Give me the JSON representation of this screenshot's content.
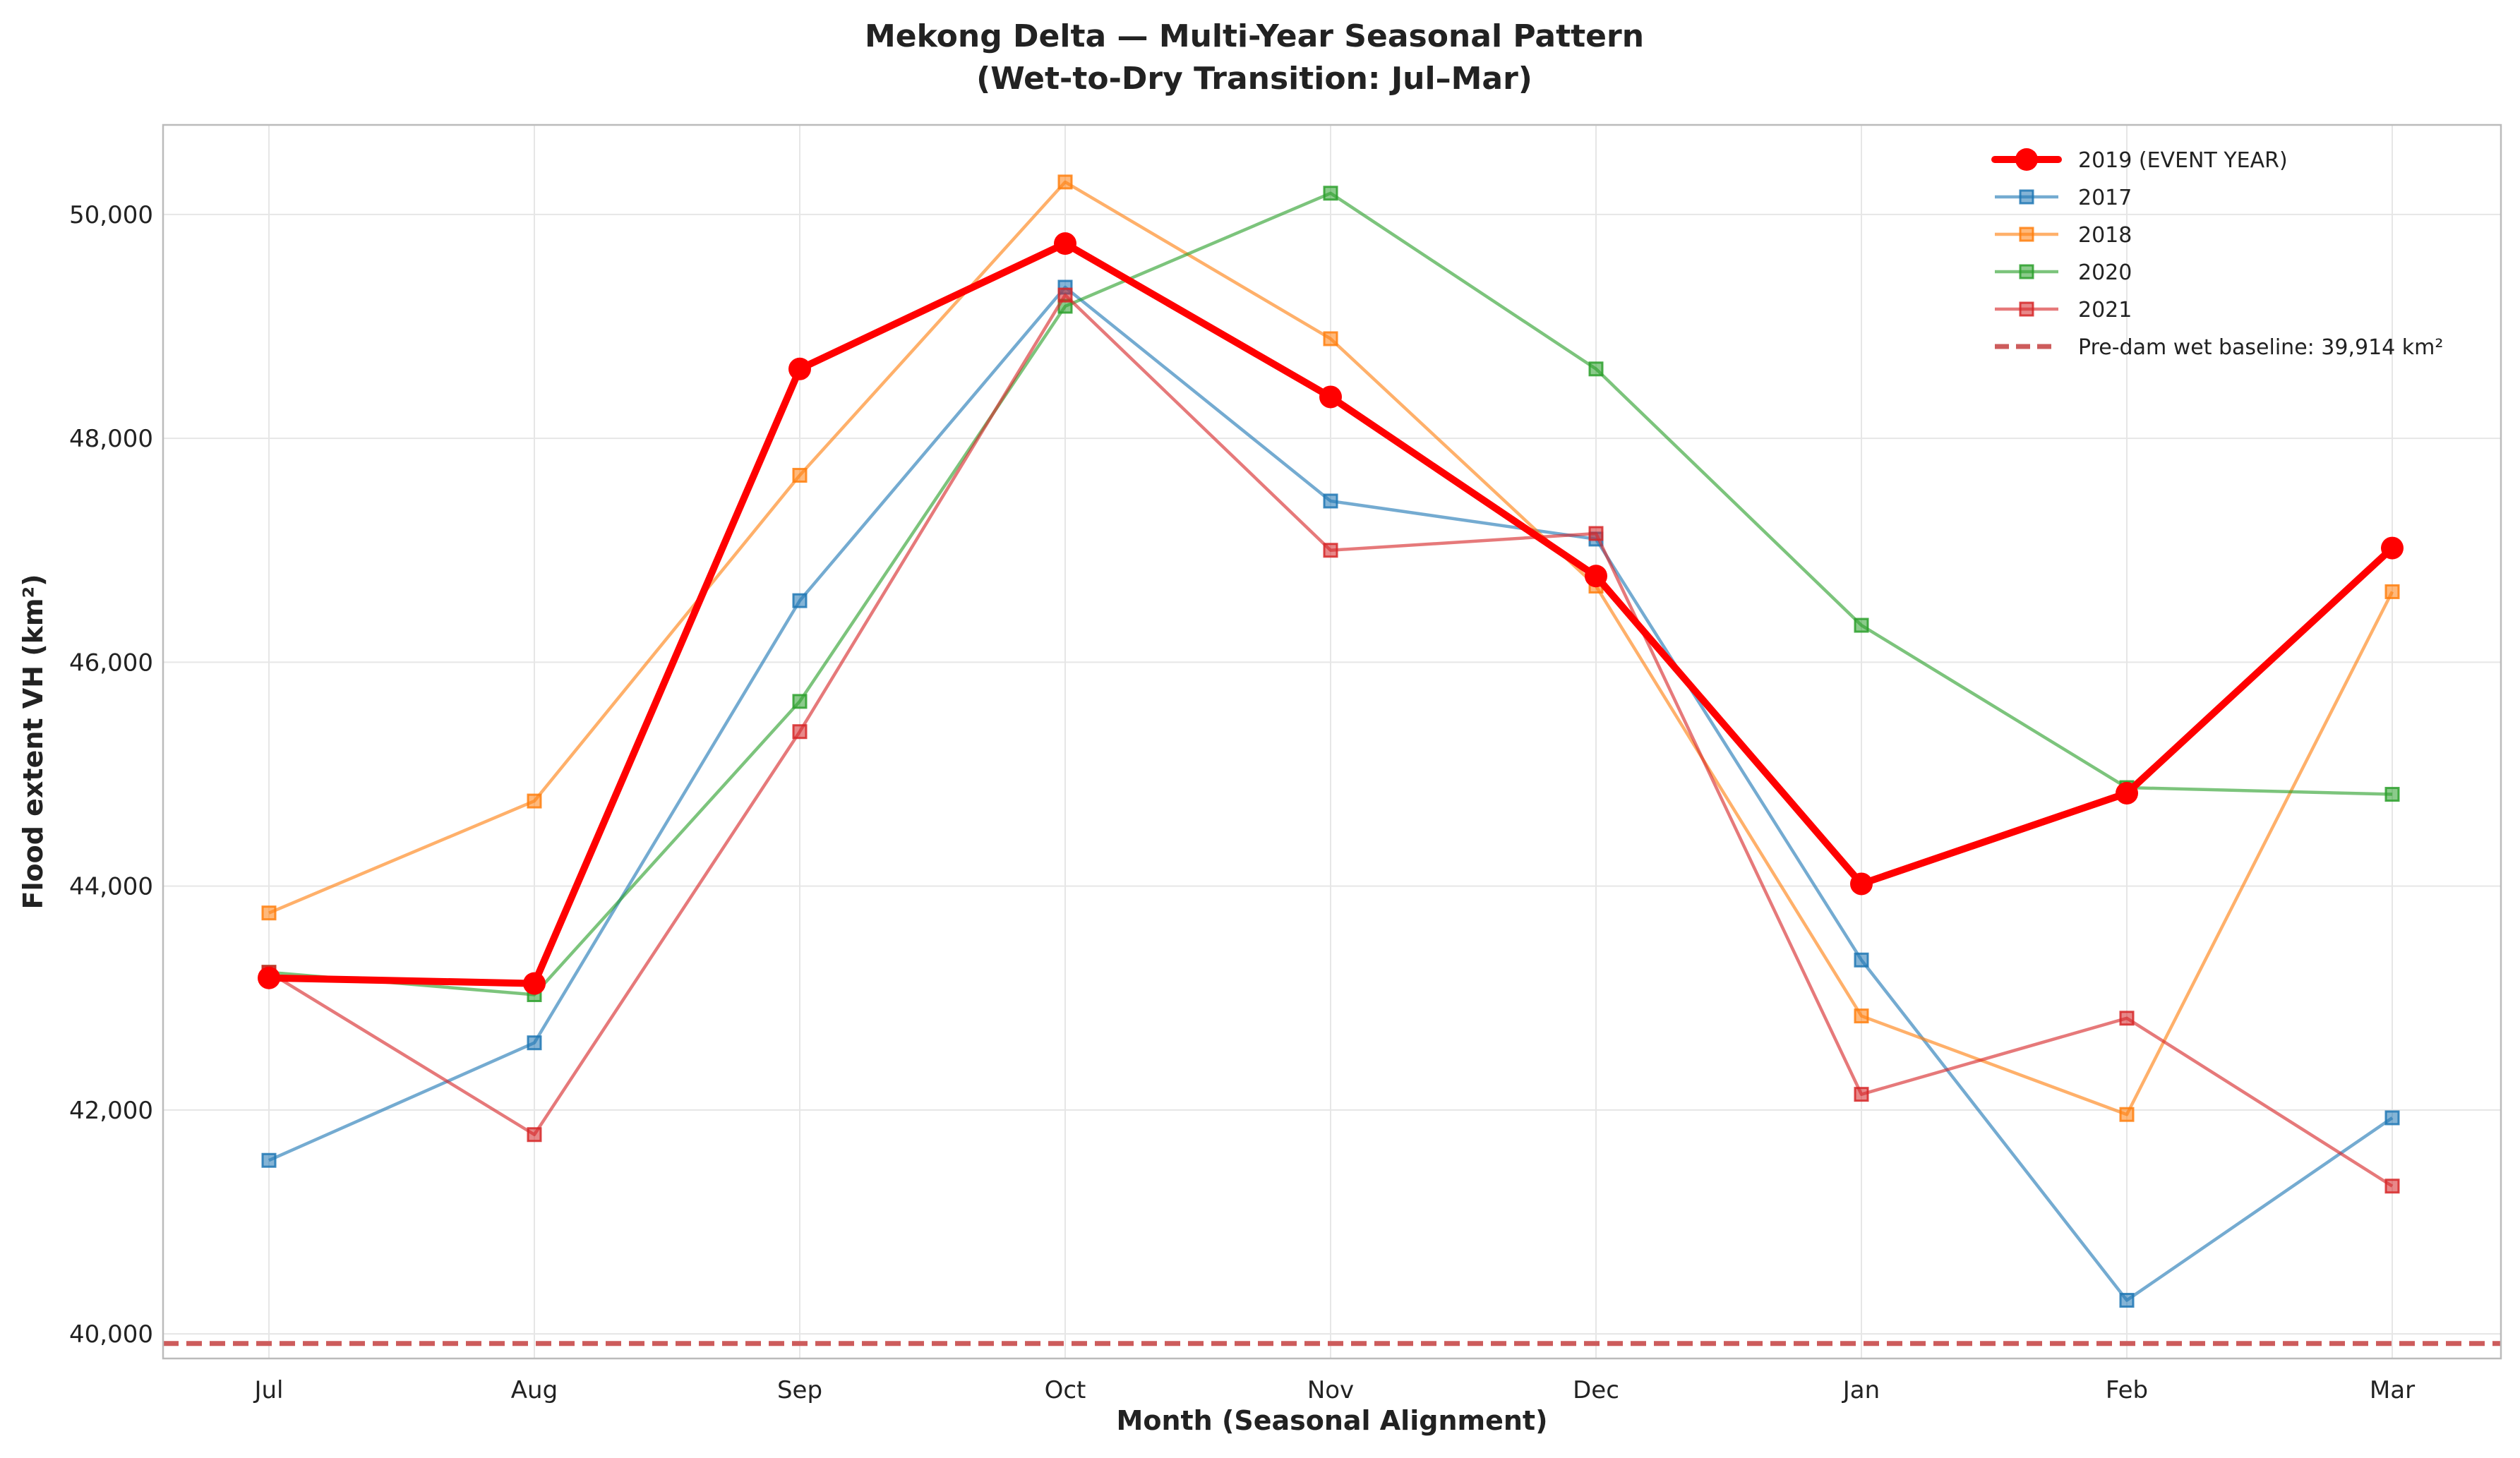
{
  "chart_data": {
    "type": "line",
    "title_line1": "Mekong Delta — Multi-Year Seasonal Pattern",
    "title_line2": "(Wet-to-Dry Transition: Jul–Mar)",
    "xlabel": "Month (Seasonal Alignment)",
    "ylabel": "Flood extent VH (km²)",
    "categories": [
      "Jul",
      "Aug",
      "Sep",
      "Oct",
      "Nov",
      "Dec",
      "Jan",
      "Feb",
      "Mar"
    ],
    "ylim": [
      39780,
      50800
    ],
    "yticks": [
      40000,
      42000,
      44000,
      46000,
      48000,
      50000
    ],
    "ytick_labels": [
      "40,000",
      "42,000",
      "44,000",
      "46,000",
      "48,000",
      "50,000"
    ],
    "grid": true,
    "legend_position": "top-right",
    "series": [
      {
        "name": "2019 (EVENT YEAR)",
        "color": "#ff0000",
        "marker": "circle",
        "emphasis": true,
        "values": [
          43180,
          43130,
          48620,
          49740,
          48370,
          46770,
          44020,
          44830,
          47020
        ]
      },
      {
        "name": "2017",
        "color": "#1f77b4",
        "marker": "square",
        "values": [
          41550,
          42600,
          46550,
          49350,
          47440,
          47100,
          43340,
          40300,
          41930
        ]
      },
      {
        "name": "2018",
        "color": "#ff7f0e",
        "marker": "square",
        "values": [
          43760,
          44760,
          47670,
          50290,
          48890,
          46680,
          42840,
          41960,
          46630
        ]
      },
      {
        "name": "2020",
        "color": "#2ca02c",
        "marker": "square",
        "values": [
          43230,
          43030,
          45650,
          49180,
          50190,
          48620,
          46330,
          44880,
          44820
        ]
      },
      {
        "name": "2021",
        "color": "#d62728",
        "marker": "square",
        "values": [
          43230,
          41780,
          45380,
          49280,
          47000,
          47150,
          42140,
          42820,
          41320
        ]
      }
    ],
    "baseline": {
      "label": "Pre-dam wet baseline: 39,914 km²",
      "value": 39914,
      "color": "#cd5c5c"
    }
  }
}
